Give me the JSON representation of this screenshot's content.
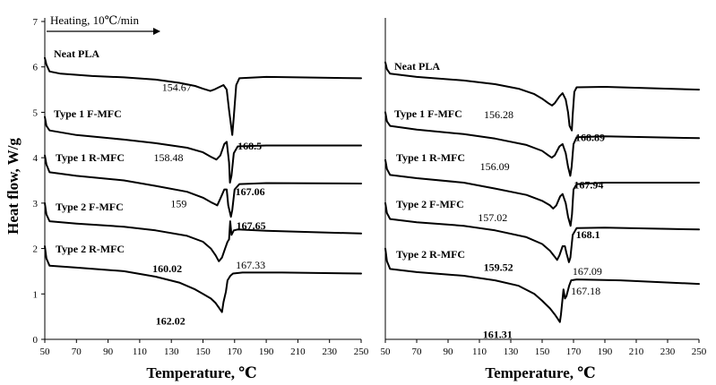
{
  "chart_data": [
    {
      "type": "line",
      "title": "",
      "xlabel": "Temperature, ℃",
      "ylabel": "Heat flow, W/g",
      "xlim": [
        50,
        250
      ],
      "ylim": [
        0,
        7
      ],
      "xticks": [
        "50",
        "70",
        "90",
        "110",
        "130",
        "150",
        "170",
        "190",
        "210",
        "230",
        "250"
      ],
      "yticks": [
        "0",
        "1",
        "2",
        "3",
        "4",
        "5",
        "6",
        "7"
      ],
      "heading_annotation": "Heating, 10℃/min",
      "series": [
        {
          "name": "Neat PLA",
          "points": [
            [
              50,
              6.2
            ],
            [
              51,
              6.05
            ],
            [
              53,
              5.9
            ],
            [
              60,
              5.85
            ],
            [
              80,
              5.8
            ],
            [
              100,
              5.77
            ],
            [
              120,
              5.72
            ],
            [
              135,
              5.65
            ],
            [
              145,
              5.58
            ],
            [
              150,
              5.52
            ],
            [
              154.67,
              5.47
            ],
            [
              157,
              5.5
            ],
            [
              160,
              5.55
            ],
            [
              163,
              5.6
            ],
            [
              165,
              5.5
            ],
            [
              166.5,
              5.05
            ],
            [
              168.5,
              4.5
            ],
            [
              169.5,
              4.9
            ],
            [
              171,
              5.6
            ],
            [
              173,
              5.75
            ],
            [
              190,
              5.78
            ],
            [
              210,
              5.77
            ],
            [
              250,
              5.75
            ]
          ],
          "annotations": [
            {
              "text": "154.67",
              "x": 154.67,
              "y": 5.47,
              "bold": false
            },
            {
              "text": "168.5",
              "x": 168.5,
              "y": 4.5,
              "bold": true
            }
          ]
        },
        {
          "name": "Type 1 F-MFC",
          "points": [
            [
              50,
              4.9
            ],
            [
              51,
              4.7
            ],
            [
              53,
              4.6
            ],
            [
              70,
              4.5
            ],
            [
              100,
              4.4
            ],
            [
              120,
              4.32
            ],
            [
              140,
              4.22
            ],
            [
              150,
              4.12
            ],
            [
              155,
              4.02
            ],
            [
              158.48,
              3.96
            ],
            [
              161,
              4.05
            ],
            [
              163.5,
              4.3
            ],
            [
              165,
              4.35
            ],
            [
              166.5,
              3.9
            ],
            [
              167.06,
              3.45
            ],
            [
              168,
              3.6
            ],
            [
              169.5,
              4.1
            ],
            [
              172,
              4.25
            ],
            [
              190,
              4.27
            ],
            [
              250,
              4.27
            ]
          ],
          "annotations": [
            {
              "text": "158.48",
              "x": 158.48,
              "y": 3.96,
              "bold": false
            },
            {
              "text": "167.06",
              "x": 167.06,
              "y": 3.45,
              "bold": true
            }
          ]
        },
        {
          "name": "Type 1 R-MFC",
          "points": [
            [
              50,
              4.05
            ],
            [
              51,
              3.85
            ],
            [
              53,
              3.68
            ],
            [
              70,
              3.6
            ],
            [
              100,
              3.5
            ],
            [
              120,
              3.38
            ],
            [
              140,
              3.25
            ],
            [
              150,
              3.12
            ],
            [
              155,
              3.02
            ],
            [
              158,
              2.97
            ],
            [
              159,
              2.95
            ],
            [
              161,
              3.1
            ],
            [
              163.5,
              3.3
            ],
            [
              165,
              3.3
            ],
            [
              166,
              2.95
            ],
            [
              167.65,
              2.7
            ],
            [
              168.5,
              2.85
            ],
            [
              170,
              3.3
            ],
            [
              173,
              3.42
            ],
            [
              190,
              3.44
            ],
            [
              250,
              3.43
            ]
          ],
          "annotations": [
            {
              "text": "159",
              "x": 159,
              "y": 2.95,
              "bold": false
            },
            {
              "text": "167.65",
              "x": 167.65,
              "y": 2.7,
              "bold": true
            }
          ]
        },
        {
          "name": "Type 2 F-MFC",
          "points": [
            [
              50,
              3.0
            ],
            [
              51,
              2.75
            ],
            [
              53,
              2.6
            ],
            [
              70,
              2.55
            ],
            [
              100,
              2.48
            ],
            [
              120,
              2.4
            ],
            [
              140,
              2.28
            ],
            [
              150,
              2.15
            ],
            [
              155,
              2.0
            ],
            [
              158,
              1.85
            ],
            [
              160.02,
              1.72
            ],
            [
              162,
              1.8
            ],
            [
              164,
              2.0
            ],
            [
              165.5,
              2.15
            ],
            [
              166.5,
              2.2
            ],
            [
              167.2,
              2.6
            ],
            [
              168,
              2.3
            ],
            [
              169.5,
              2.4
            ],
            [
              172,
              2.42
            ],
            [
              190,
              2.39
            ],
            [
              250,
              2.33
            ]
          ],
          "annotations": [
            {
              "text": "160.02",
              "x": 160.02,
              "y": 1.72,
              "bold": true
            }
          ]
        },
        {
          "name": "Type 2 R-MFC",
          "points": [
            [
              50,
              2.05
            ],
            [
              51,
              1.78
            ],
            [
              53,
              1.62
            ],
            [
              70,
              1.58
            ],
            [
              100,
              1.5
            ],
            [
              120,
              1.38
            ],
            [
              135,
              1.25
            ],
            [
              145,
              1.1
            ],
            [
              150,
              1.0
            ],
            [
              155,
              0.9
            ],
            [
              158,
              0.8
            ],
            [
              160,
              0.7
            ],
            [
              162.02,
              0.6
            ],
            [
              163,
              0.82
            ],
            [
              164.5,
              1.05
            ],
            [
              165.5,
              1.3
            ],
            [
              167.33,
              1.4
            ],
            [
              169,
              1.45
            ],
            [
              175,
              1.47
            ],
            [
              200,
              1.47
            ],
            [
              250,
              1.45
            ]
          ],
          "annotations": [
            {
              "text": "162.02",
              "x": 162.02,
              "y": 0.6,
              "bold": true
            },
            {
              "text": "167.33",
              "x": 167.33,
              "y": 1.4,
              "bold": false
            }
          ]
        }
      ]
    },
    {
      "type": "line",
      "title": "",
      "xlabel": "Temperature, ℃",
      "ylabel": "",
      "xlim": [
        50,
        250
      ],
      "ylim": [
        0,
        7
      ],
      "xticks": [
        "50",
        "70",
        "90",
        "110",
        "130",
        "150",
        "170",
        "190",
        "210",
        "230",
        "250"
      ],
      "series": [
        {
          "name": "Neat PLA",
          "points": [
            [
              50,
              6.1
            ],
            [
              51,
              5.95
            ],
            [
              53,
              5.85
            ],
            [
              70,
              5.78
            ],
            [
              100,
              5.7
            ],
            [
              120,
              5.62
            ],
            [
              135,
              5.52
            ],
            [
              145,
              5.4
            ],
            [
              150,
              5.3
            ],
            [
              154,
              5.2
            ],
            [
              156.28,
              5.15
            ],
            [
              158,
              5.2
            ],
            [
              161,
              5.35
            ],
            [
              163,
              5.42
            ],
            [
              165,
              5.28
            ],
            [
              166.5,
              5.0
            ],
            [
              167.5,
              4.7
            ],
            [
              168.89,
              4.6
            ],
            [
              169.5,
              4.95
            ],
            [
              170.5,
              5.45
            ],
            [
              172,
              5.55
            ],
            [
              190,
              5.56
            ],
            [
              250,
              5.5
            ]
          ],
          "annotations": [
            {
              "text": "156.28",
              "x": 156.28,
              "y": 5.15,
              "bold": false
            },
            {
              "text": "168.89",
              "x": 168.89,
              "y": 4.6,
              "bold": true
            }
          ]
        },
        {
          "name": "Type 1 F-MFC",
          "points": [
            [
              50,
              5.0
            ],
            [
              51,
              4.8
            ],
            [
              53,
              4.7
            ],
            [
              70,
              4.62
            ],
            [
              100,
              4.52
            ],
            [
              120,
              4.42
            ],
            [
              140,
              4.28
            ],
            [
              150,
              4.15
            ],
            [
              154,
              4.05
            ],
            [
              156.09,
              4.0
            ],
            [
              158,
              4.05
            ],
            [
              161,
              4.25
            ],
            [
              163,
              4.3
            ],
            [
              165,
              4.1
            ],
            [
              166.5,
              3.8
            ],
            [
              167.94,
              3.6
            ],
            [
              168.8,
              3.8
            ],
            [
              170,
              4.3
            ],
            [
              172,
              4.45
            ],
            [
              190,
              4.47
            ],
            [
              250,
              4.43
            ]
          ],
          "annotations": [
            {
              "text": "156.09",
              "x": 156.09,
              "y": 4.0,
              "bold": false
            },
            {
              "text": "167.94",
              "x": 167.94,
              "y": 3.6,
              "bold": true
            }
          ]
        },
        {
          "name": "Type 1 R-MFC",
          "points": [
            [
              50,
              3.95
            ],
            [
              51,
              3.75
            ],
            [
              53,
              3.62
            ],
            [
              70,
              3.55
            ],
            [
              100,
              3.45
            ],
            [
              120,
              3.32
            ],
            [
              140,
              3.18
            ],
            [
              150,
              3.05
            ],
            [
              155,
              2.95
            ],
            [
              157.02,
              2.88
            ],
            [
              159,
              2.95
            ],
            [
              161.5,
              3.15
            ],
            [
              163,
              3.2
            ],
            [
              165,
              3.0
            ],
            [
              166.5,
              2.7
            ],
            [
              168.1,
              2.5
            ],
            [
              169,
              2.75
            ],
            [
              170,
              3.3
            ],
            [
              172,
              3.42
            ],
            [
              190,
              3.45
            ],
            [
              250,
              3.45
            ]
          ],
          "annotations": [
            {
              "text": "157.02",
              "x": 157.02,
              "y": 2.88,
              "bold": false
            },
            {
              "text": "168.1",
              "x": 168.1,
              "y": 2.5,
              "bold": true
            }
          ]
        },
        {
          "name": "Type 2 F-MFC",
          "points": [
            [
              50,
              3.0
            ],
            [
              51,
              2.78
            ],
            [
              53,
              2.65
            ],
            [
              70,
              2.58
            ],
            [
              100,
              2.5
            ],
            [
              120,
              2.4
            ],
            [
              140,
              2.25
            ],
            [
              150,
              2.1
            ],
            [
              155,
              1.95
            ],
            [
              158,
              1.82
            ],
            [
              159.52,
              1.75
            ],
            [
              161,
              1.85
            ],
            [
              163,
              2.05
            ],
            [
              164.5,
              2.05
            ],
            [
              165.5,
              1.9
            ],
            [
              167.09,
              1.7
            ],
            [
              168,
              1.8
            ],
            [
              169.5,
              2.3
            ],
            [
              172,
              2.45
            ],
            [
              190,
              2.46
            ],
            [
              250,
              2.42
            ]
          ],
          "annotations": [
            {
              "text": "159.52",
              "x": 159.52,
              "y": 1.75,
              "bold": true
            },
            {
              "text": "167.09",
              "x": 167.09,
              "y": 1.7,
              "bold": false
            }
          ]
        },
        {
          "name": "Type 2 R-MFC",
          "points": [
            [
              50,
              2.0
            ],
            [
              51,
              1.72
            ],
            [
              53,
              1.55
            ],
            [
              70,
              1.48
            ],
            [
              100,
              1.4
            ],
            [
              120,
              1.3
            ],
            [
              135,
              1.18
            ],
            [
              145,
              1.0
            ],
            [
              150,
              0.85
            ],
            [
              155,
              0.68
            ],
            [
              158,
              0.55
            ],
            [
              160,
              0.45
            ],
            [
              161.31,
              0.38
            ],
            [
              162,
              0.55
            ],
            [
              163,
              0.9
            ],
            [
              163.6,
              1.1
            ],
            [
              164.5,
              0.9
            ],
            [
              165.5,
              0.95
            ],
            [
              167.18,
              1.18
            ],
            [
              168.5,
              1.3
            ],
            [
              172,
              1.32
            ],
            [
              200,
              1.3
            ],
            [
              250,
              1.22
            ]
          ],
          "annotations": [
            {
              "text": "161.31",
              "x": 161.31,
              "y": 0.38,
              "bold": true
            },
            {
              "text": "167.18",
              "x": 167.18,
              "y": 1.18,
              "bold": false
            }
          ]
        }
      ]
    }
  ]
}
